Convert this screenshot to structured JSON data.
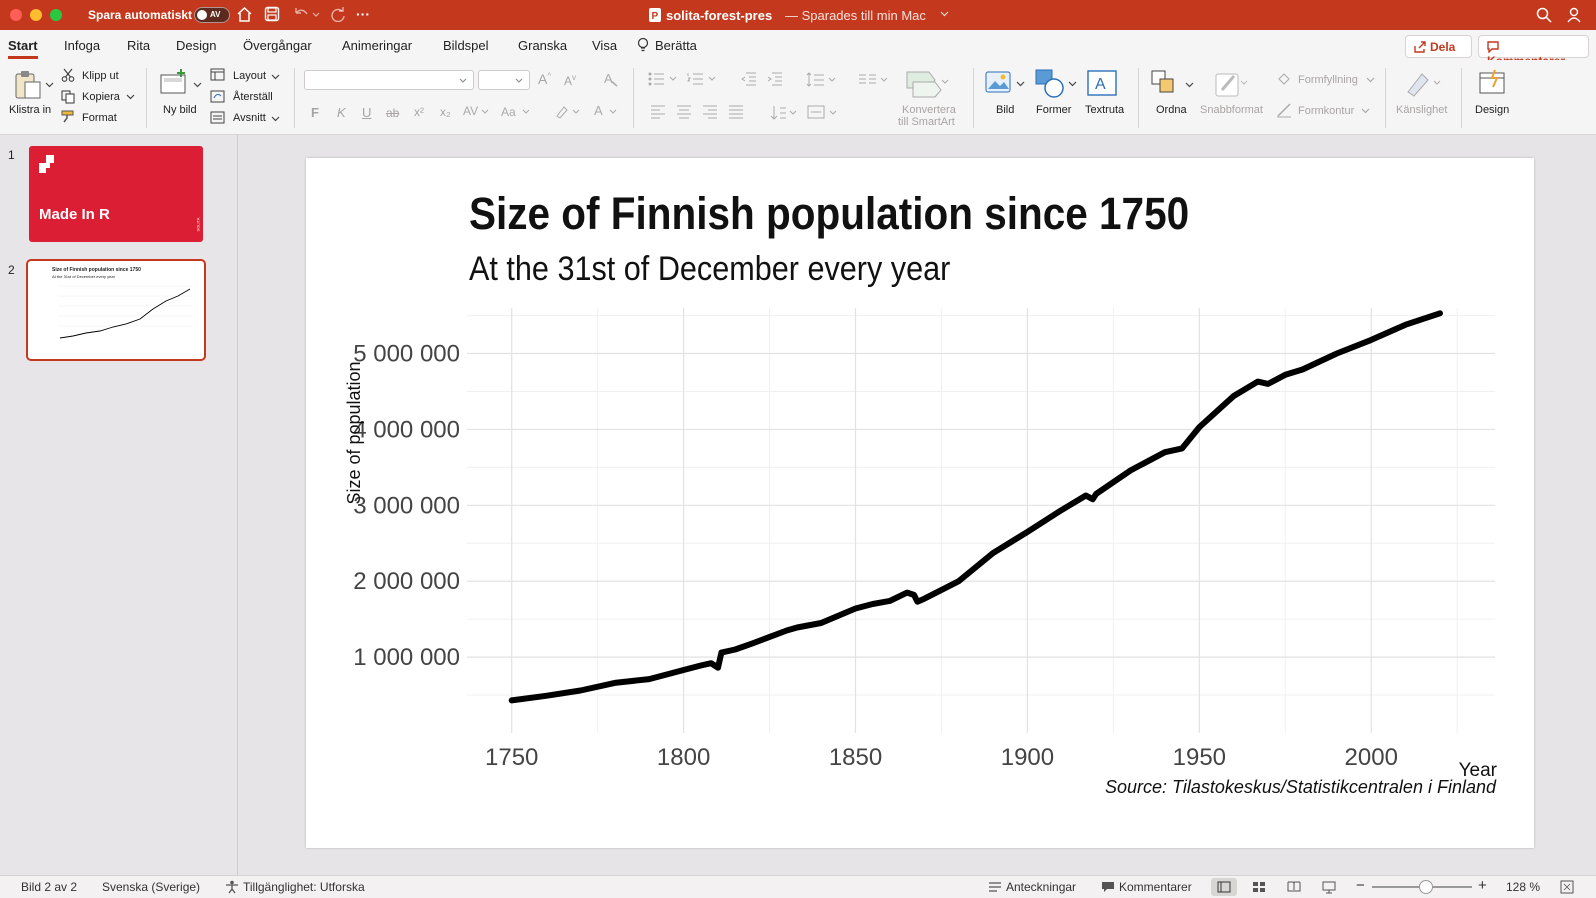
{
  "window": {
    "autosave_label": "Spara automatiskt",
    "autosave_state": "AV",
    "doc_name": "solita-forest-pres",
    "doc_status": "— Sparades till min Mac",
    "ellipsis": "···"
  },
  "menu": {
    "tabs": [
      "Start",
      "Infoga",
      "Rita",
      "Design",
      "Övergångar",
      "Animeringar",
      "Bildspel",
      "Granska",
      "Visa",
      "Berätta"
    ],
    "share": "Dela",
    "comments": "Kommentarer"
  },
  "ribbon": {
    "paste": "Klistra in",
    "cut": "Klipp ut",
    "copy": "Kopiera",
    "format": "Format",
    "new_slide": "Ny bild",
    "layout": "Layout",
    "reset": "Återställ",
    "section": "Avsnitt",
    "convert_line1": "Konvertera",
    "convert_line2": "till SmartArt",
    "picture": "Bild",
    "shapes": "Former",
    "textbox": "Textruta",
    "arrange": "Ordna",
    "quick_styles": "Snabbformat",
    "shape_fill": "Formfyllning",
    "shape_outline": "Formkontur",
    "sensitivity": "Känslighet",
    "designer": "Design",
    "font_buttons": [
      "F",
      "K",
      "U",
      "ab",
      "x²",
      "x₂"
    ]
  },
  "slides": {
    "numbers": [
      "1",
      "2"
    ],
    "slide1_title": "Made In R",
    "slide1_vertical": "SOLITA",
    "slide2_title": "Size of Finnish population since 1750",
    "slide2_subtitle": "At the 31st of December every year"
  },
  "slide": {
    "title": "Size of Finnish population since 1750",
    "subtitle": "At the 31st of December every year",
    "source": "Source: Tilastokeskus/Statistikcentralen i Finland"
  },
  "chart_data": {
    "type": "line",
    "title": "Size of Finnish population since 1750",
    "subtitle": "At the 31st of December every year",
    "xlabel": "Year",
    "ylabel": "Size of population",
    "xlim": [
      1737,
      2036
    ],
    "ylim": [
      0,
      5600000
    ],
    "x_ticks": [
      1750,
      1800,
      1850,
      1900,
      1950,
      2000
    ],
    "x_tick_labels": [
      "1750",
      "1800",
      "1850",
      "1900",
      "1950",
      "2000"
    ],
    "y_ticks": [
      1000000,
      2000000,
      3000000,
      4000000,
      5000000
    ],
    "y_tick_labels": [
      "1 000 000",
      "2 000 000",
      "3 000 000",
      "4 000 000",
      "5 000 000"
    ],
    "grid": true,
    "series": [
      {
        "color": "#000000",
        "x": [
          1750,
          1760,
          1770,
          1780,
          1790,
          1800,
          1805,
          1808,
          1810,
          1811,
          1815,
          1820,
          1830,
          1833,
          1840,
          1850,
          1855,
          1860,
          1865,
          1867,
          1868,
          1870,
          1880,
          1890,
          1900,
          1910,
          1917,
          1919,
          1920,
          1930,
          1940,
          1945,
          1950,
          1960,
          1967,
          1970,
          1975,
          1980,
          1990,
          2000,
          2010,
          2020
        ],
        "y": [
          430000,
          490000,
          560000,
          660000,
          710000,
          830000,
          890000,
          920000,
          860000,
          1060000,
          1100000,
          1180000,
          1350000,
          1390000,
          1450000,
          1640000,
          1700000,
          1740000,
          1850000,
          1820000,
          1730000,
          1770000,
          2000000,
          2370000,
          2650000,
          2940000,
          3130000,
          3080000,
          3150000,
          3460000,
          3700000,
          3750000,
          4030000,
          4440000,
          4630000,
          4600000,
          4720000,
          4790000,
          5000000,
          5180000,
          5380000,
          5530000
        ]
      }
    ]
  },
  "status": {
    "slide_of": "Bild 2 av 2",
    "language": "Svenska (Sverige)",
    "accessibility": "Tillgänglighet: Utforska",
    "notes": "Anteckningar",
    "comments": "Kommentarer",
    "zoom": "128 %"
  },
  "colors": {
    "accent": "#c4391d",
    "slide1_bg": "#dc1e35"
  }
}
